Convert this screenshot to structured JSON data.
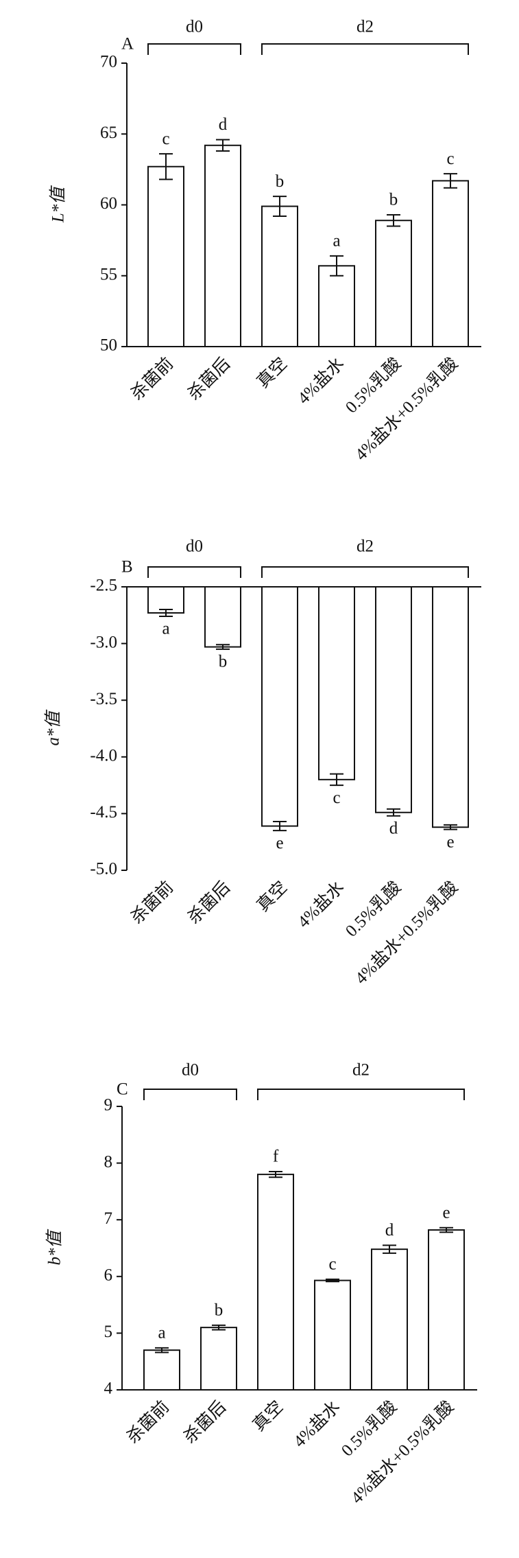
{
  "chart_data": [
    {
      "type": "bar",
      "panel": "A",
      "y_label": "L*值",
      "categories": [
        "杀菌前",
        "杀菌后",
        "真空",
        "4%盐水",
        "0.5%乳酸",
        "4%盐水+0.5%乳酸"
      ],
      "values": [
        62.7,
        64.2,
        59.9,
        55.7,
        58.9,
        61.7
      ],
      "errors": [
        0.9,
        0.4,
        0.7,
        0.7,
        0.4,
        0.5
      ],
      "letters": [
        "c",
        "d",
        "b",
        "a",
        "b",
        "c"
      ],
      "groups": [
        {
          "label": "d0"
        },
        {
          "label": "d2"
        }
      ],
      "ylim": [
        50,
        70
      ],
      "yticks": [
        50,
        55,
        60,
        65,
        70
      ],
      "color": "#ffffff"
    },
    {
      "type": "bar",
      "panel": "B",
      "y_label": "a*值",
      "categories": [
        "杀菌前",
        "杀菌后",
        "真空",
        "4%盐水",
        "0.5%乳酸",
        "4%盐水+0.5%乳酸"
      ],
      "values": [
        -2.73,
        -3.03,
        -4.61,
        -4.2,
        -4.49,
        -4.62
      ],
      "errors": [
        0.03,
        0.02,
        0.04,
        0.05,
        0.03,
        0.02
      ],
      "letters": [
        "a",
        "b",
        "e",
        "c",
        "d",
        "e"
      ],
      "groups": [
        {
          "label": "d0"
        },
        {
          "label": "d2"
        }
      ],
      "ylim": [
        -5.0,
        -2.5
      ],
      "yticks": [
        {
          "value": -5.0,
          "label": "-5.0"
        },
        -4.5,
        {
          "value": -4.0,
          "label": "-4.0"
        },
        -3.5,
        {
          "value": -3.0,
          "label": "-3.0"
        },
        -2.5
      ],
      "color": "#ffffff"
    },
    {
      "type": "bar",
      "panel": "C",
      "y_label": "b*值",
      "categories": [
        "杀菌前",
        "杀菌后",
        "真空",
        "4%盐水",
        "0.5%乳酸",
        "4%盐水+0.5%乳酸"
      ],
      "values": [
        4.7,
        5.1,
        7.8,
        5.93,
        6.48,
        6.82
      ],
      "errors": [
        0.04,
        0.04,
        0.05,
        0.02,
        0.07,
        0.04
      ],
      "letters": [
        "a",
        "b",
        "f",
        "c",
        "d",
        "e"
      ],
      "groups": [
        {
          "label": "d0"
        },
        {
          "label": "d2"
        }
      ],
      "ylim": [
        4,
        9
      ],
      "yticks": [
        4,
        5,
        6,
        7,
        8,
        9
      ],
      "color": "#ffffff"
    }
  ]
}
